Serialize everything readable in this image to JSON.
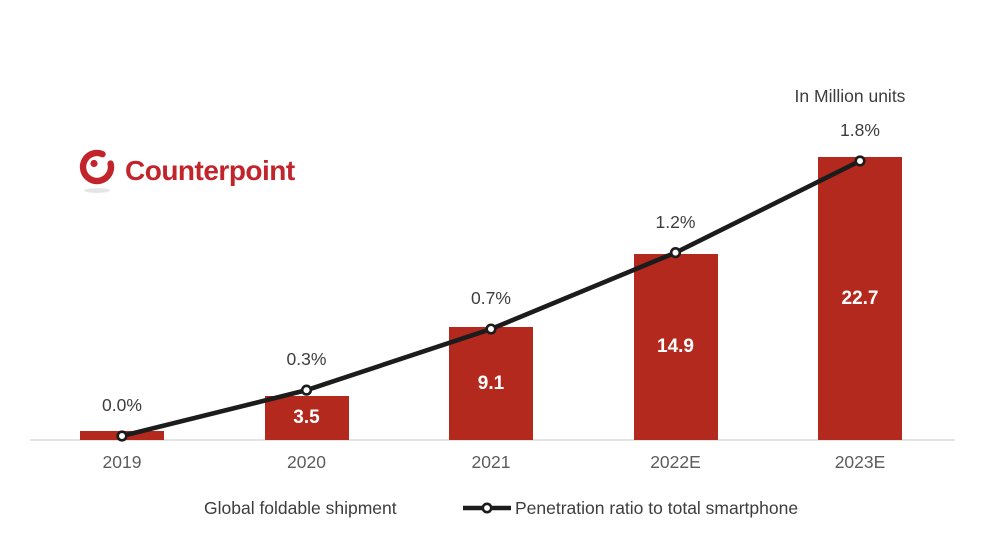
{
  "logo": {
    "text": "Counterpoint"
  },
  "header": {
    "units_label": "In Million units"
  },
  "chart_data": {
    "type": "bar",
    "subtype": "combo-bar-line",
    "title": "",
    "xlabel": "",
    "ylabel": "",
    "categories": [
      "2019",
      "2020",
      "2021",
      "2022E",
      "2023E"
    ],
    "series": [
      {
        "name": "Global foldable shipment",
        "type": "bar",
        "unit": "Million units",
        "values": [
          0.7,
          3.5,
          9.1,
          14.9,
          22.7
        ],
        "value_labels": [
          "",
          "3.5",
          "9.1",
          "14.9",
          "22.7"
        ],
        "color": "#b4291e"
      },
      {
        "name": "Penetration ratio to total smartphone",
        "type": "line",
        "unit": "%",
        "values": [
          0.0,
          0.3,
          0.7,
          1.2,
          1.8
        ],
        "value_labels": [
          "0.0%",
          "0.3%",
          "0.7%",
          "1.2%",
          "1.8%"
        ],
        "color": "#1c1c1c",
        "marker": "circle-white-fill"
      }
    ],
    "bar_axis_max": 24,
    "pct_axis_max": 2.0,
    "grid": false,
    "legend_position": "bottom"
  },
  "colors": {
    "bar_red": "#b4291e",
    "line_black": "#1c1c1c",
    "logo_red": "#c2242b",
    "axis_gray": "#e3e3e3",
    "bar_label_text": "#ffffff",
    "pct_label_text": "#3d3d3d",
    "tick_text": "#5c5c5c"
  }
}
